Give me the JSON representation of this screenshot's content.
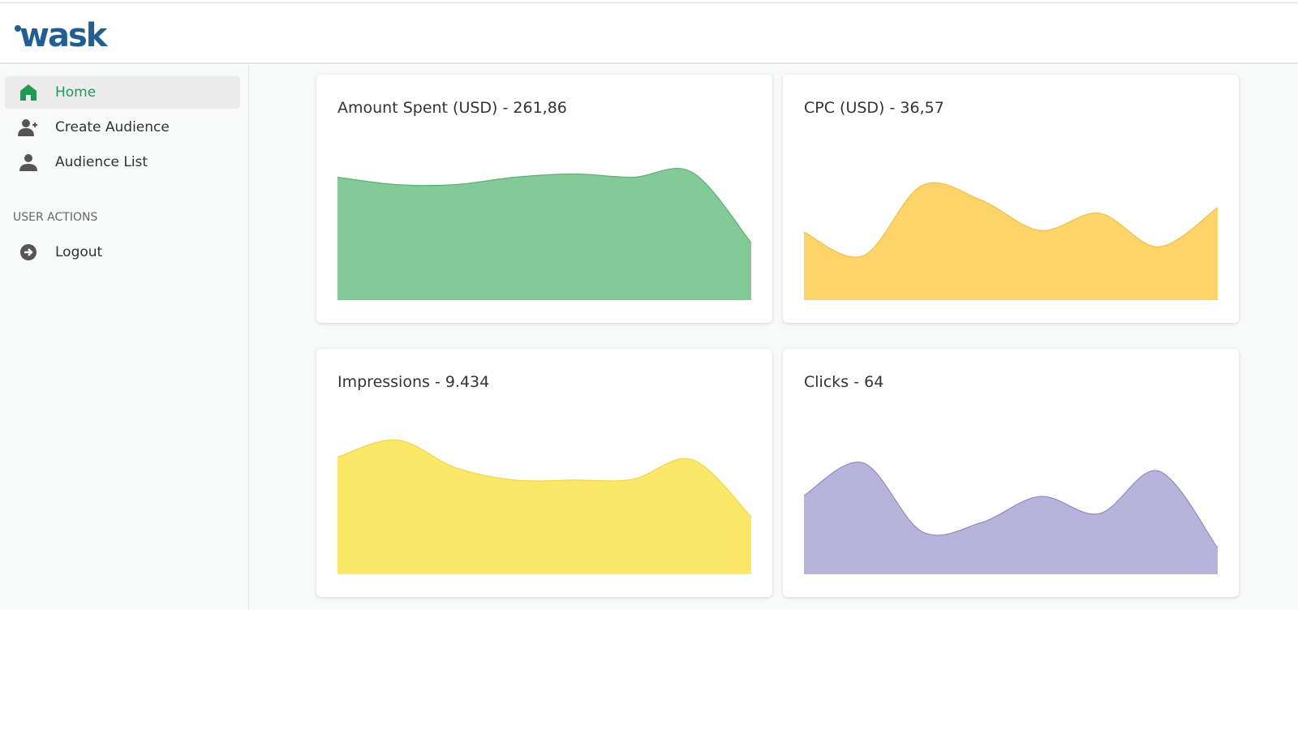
{
  "brand": {
    "logo_text": "wask",
    "color": "#1f5f95"
  },
  "sidebar": {
    "items": [
      {
        "label": "Home",
        "icon": "home-icon",
        "active": true
      },
      {
        "label": "Create Audience",
        "icon": "user-plus-icon"
      },
      {
        "label": "Audience List",
        "icon": "user-icon"
      }
    ],
    "section_label": "USER ACTIONS",
    "actions": [
      {
        "label": "Logout",
        "icon": "arrow-circle-right-icon"
      }
    ]
  },
  "cards": [
    {
      "title": "Amount Spent (USD) - 261,86"
    },
    {
      "title": "CPC (USD) - 36,57"
    },
    {
      "title": "Impressions - 9.434"
    },
    {
      "title": "Clicks - 64"
    }
  ],
  "chart_data": [
    {
      "type": "area",
      "ylim": [
        0,
        200
      ],
      "values": [
        150,
        141,
        141,
        150,
        154,
        150,
        156,
        70
      ],
      "fill": "#82ca96",
      "stroke": "#5bb270"
    },
    {
      "type": "area",
      "ylim": [
        0,
        200
      ],
      "values": [
        83,
        54,
        140,
        122,
        85,
        106,
        65,
        113
      ],
      "fill": "#fdd468",
      "stroke": "#f5c040"
    },
    {
      "type": "area",
      "ylim": [
        0,
        200
      ],
      "values": [
        143,
        164,
        130,
        115,
        115,
        116,
        140,
        70
      ],
      "fill": "#fae866",
      "stroke": "#f0d840"
    },
    {
      "type": "area",
      "ylim": [
        0,
        200
      ],
      "values": [
        96,
        136,
        52,
        63,
        95,
        74,
        126,
        32
      ],
      "fill": "#b7b4db",
      "stroke": "#8f8cc4"
    }
  ]
}
